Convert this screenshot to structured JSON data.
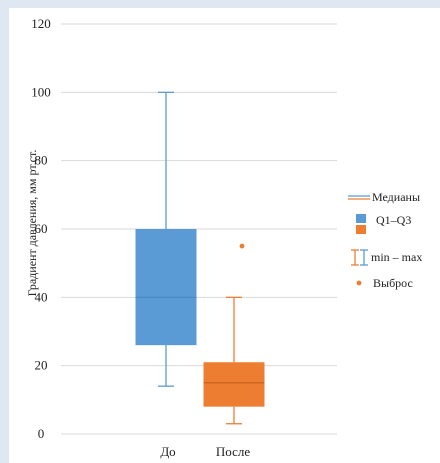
{
  "chart_data": {
    "type": "boxplot",
    "title": "",
    "xlabel": "",
    "ylabel": "Градиент давления, мм рт.ст.",
    "ylim": [
      0,
      120
    ],
    "yticks": [
      0,
      20,
      40,
      60,
      80,
      100,
      120
    ],
    "grid": true,
    "legend_position": "right",
    "categories": [
      "До",
      "После"
    ],
    "series": [
      {
        "category": "До",
        "min": 14,
        "q1": 26,
        "median": 40,
        "q3": 60,
        "max": 100,
        "outliers": [],
        "color": "#5b9bd5"
      },
      {
        "category": "После",
        "min": 3,
        "q1": 8,
        "median": 15,
        "q3": 21,
        "max": 40,
        "outliers": [
          55
        ],
        "color": "#ed7d31"
      }
    ],
    "legend": {
      "median": "Медианы",
      "box": "Q1–Q3",
      "whisker": "min – max",
      "outlier": "Выброс"
    }
  }
}
